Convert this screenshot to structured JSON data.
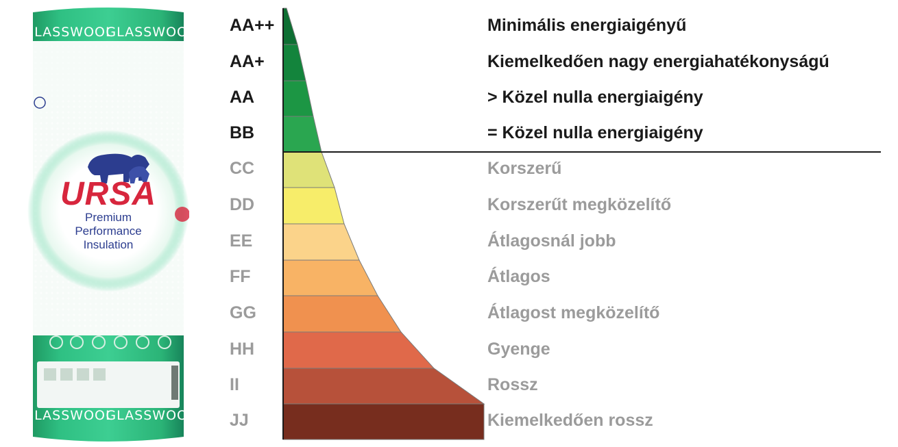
{
  "product": {
    "band_label": "GLASSWOOL",
    "brand": "URSA",
    "tagline": [
      "Premium",
      "Performance",
      "Insulation"
    ]
  },
  "classes": [
    {
      "grade": "AA++",
      "description": "Minimális energiaigényű",
      "color": "#0e6f33",
      "group": "upper"
    },
    {
      "grade": "AA+",
      "description": "Kiemelkedően nagy energiahatékonyságú",
      "color": "#13843c",
      "group": "upper"
    },
    {
      "grade": "AA",
      "description": "> Közel nulla energiaigény",
      "color": "#1c9644",
      "group": "upper"
    },
    {
      "grade": "BB",
      "description": "= Közel nulla energiaigény",
      "color": "#2aa650",
      "group": "upper"
    },
    {
      "grade": "CC",
      "description": "Korszerű",
      "color": "#dfe278",
      "group": "lower"
    },
    {
      "grade": "DD",
      "description": "Korszerűt megközelítő",
      "color": "#f7ed6a",
      "group": "lower"
    },
    {
      "grade": "EE",
      "description": "Átlagosnál jobb",
      "color": "#fbd38a",
      "group": "lower"
    },
    {
      "grade": "FF",
      "description": "Átlagos",
      "color": "#f8b365",
      "group": "lower"
    },
    {
      "grade": "GG",
      "description": "Átlagost megközelítő",
      "color": "#f0914f",
      "group": "lower"
    },
    {
      "grade": "HH",
      "description": "Gyenge",
      "color": "#e0694a",
      "group": "lower"
    },
    {
      "grade": "II",
      "description": "Rossz",
      "color": "#b7513a",
      "group": "lower"
    },
    {
      "grade": "JJ",
      "description": "Kiemelkedően rossz",
      "color": "#772d1e",
      "group": "lower"
    }
  ]
}
